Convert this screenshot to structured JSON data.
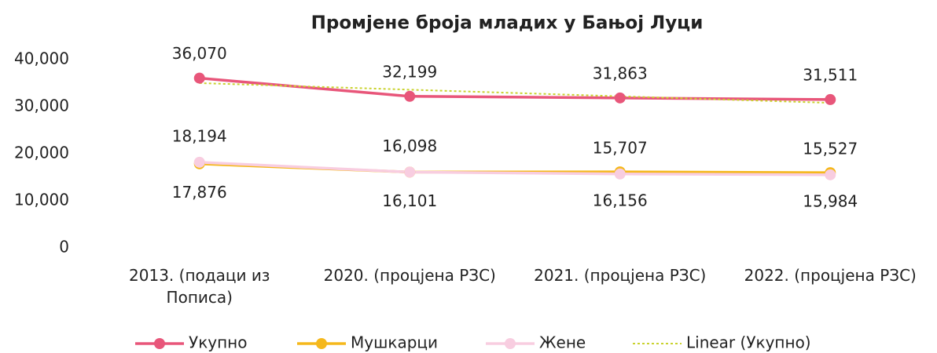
{
  "chart_data": {
    "type": "line",
    "title": "Промјене броја младих у Бањој Луци",
    "categories": [
      "2013. (подаци из Пописа)",
      "2020. (процјена РЗС)",
      "2021. (процјена РЗС)",
      "2022. (процјена РЗС)"
    ],
    "series": [
      {
        "name": "Укупно",
        "color": "#e8567a",
        "values": [
          36070,
          32199,
          31863,
          31511
        ],
        "value_labels": [
          "36,070",
          "32,199",
          "31,863",
          "31,511"
        ]
      },
      {
        "name": "Мушкарци",
        "color": "#f5b81c",
        "values": [
          17876,
          16101,
          16156,
          15984
        ],
        "value_labels": [
          "17,876",
          "16,101",
          "16,156",
          "15,984"
        ]
      },
      {
        "name": "Жене",
        "color": "#f8cde0",
        "values": [
          18194,
          16098,
          15707,
          15527
        ],
        "value_labels": [
          "18,194",
          "16,098",
          "15,707",
          "15,527"
        ]
      },
      {
        "name": "Linear (Укупно)",
        "color": "#c9d22e",
        "dashed": true,
        "values": [
          35013,
          33611,
          32210,
          30809
        ]
      }
    ],
    "ylim": [
      0,
      40000
    ],
    "yticks": [
      0,
      {
        "value": 10000,
        "label": "10,000"
      },
      {
        "value": 20000,
        "label": "20,000"
      },
      {
        "value": 30000,
        "label": "30,000"
      },
      {
        "value": 40000,
        "label": "40,000"
      }
    ],
    "grid": false,
    "legend": "bottom"
  }
}
